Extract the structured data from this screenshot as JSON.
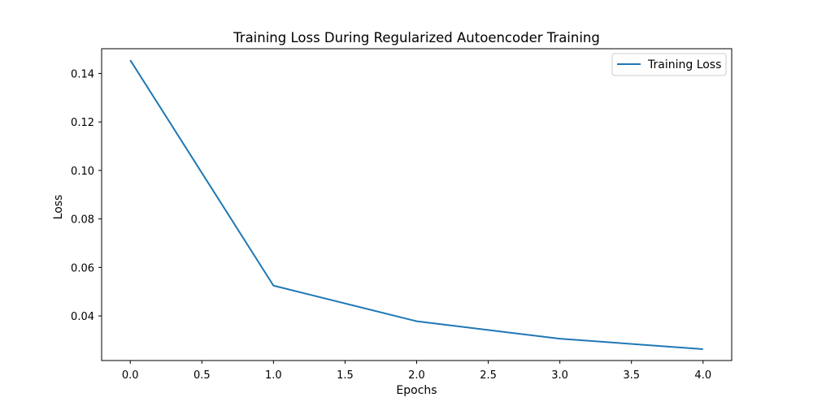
{
  "chart_data": {
    "type": "line",
    "title": "Training Loss During Regularized Autoencoder Training",
    "xlabel": "Epochs",
    "ylabel": "Loss",
    "x": [
      0.0,
      1.0,
      2.0,
      3.0,
      4.0
    ],
    "series": [
      {
        "name": "Training Loss",
        "color": "#1f77b4",
        "values": [
          0.1455,
          0.0525,
          0.0378,
          0.0306,
          0.0263
        ]
      }
    ],
    "xlim": [
      -0.2,
      4.2
    ],
    "ylim": [
      0.0216,
      0.1502
    ],
    "x_ticks": [
      0.0,
      0.5,
      1.0,
      1.5,
      2.0,
      2.5,
      3.0,
      3.5,
      4.0
    ],
    "x_tick_labels": [
      "0.0",
      "0.5",
      "1.0",
      "1.5",
      "2.0",
      "2.5",
      "3.0",
      "3.5",
      "4.0"
    ],
    "y_ticks": [
      0.04,
      0.06,
      0.08,
      0.1,
      0.12,
      0.14
    ],
    "y_tick_labels": [
      "0.04",
      "0.06",
      "0.08",
      "0.10",
      "0.12",
      "0.14"
    ],
    "grid": false,
    "legend_position": "top-right"
  }
}
